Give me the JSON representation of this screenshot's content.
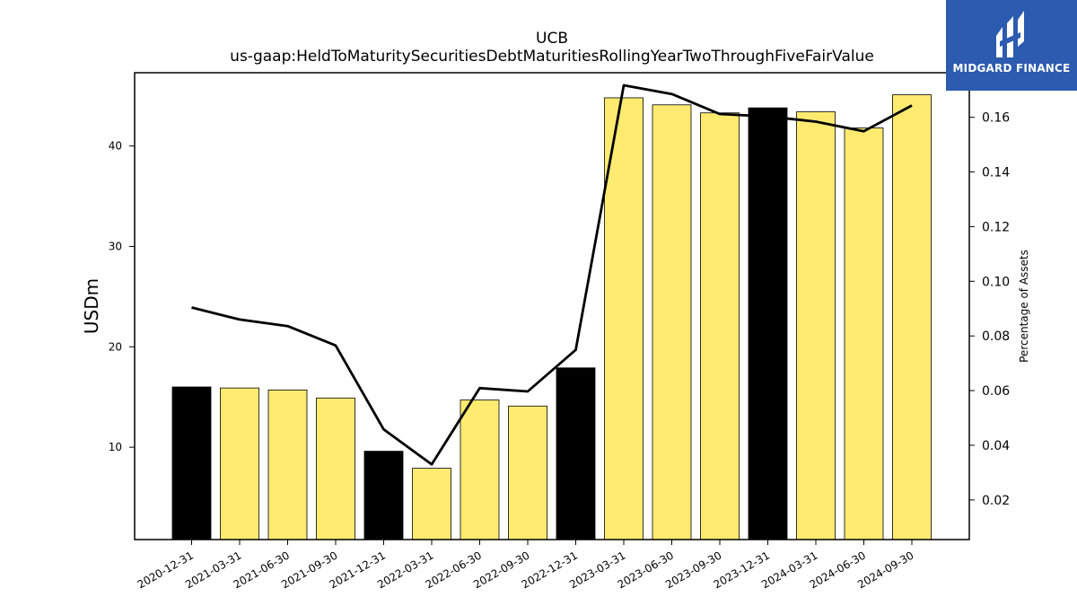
{
  "chart_data": {
    "type": "bar",
    "title": "UCB",
    "subtitle": "us-gaap:HeldToMaturitySecuritiesDebtMaturitiesRollingYearTwoThroughFiveFairValue",
    "ylabel": "USDm",
    "y2label": "Percentage of Assets",
    "categories": [
      "2020-12-31",
      "2021-03-31",
      "2021-06-30",
      "2021-09-30",
      "2021-12-31",
      "2022-03-31",
      "2022-06-30",
      "2022-09-30",
      "2022-12-31",
      "2023-03-31",
      "2023-06-30",
      "2023-09-30",
      "2023-12-31",
      "2024-03-31",
      "2024-06-30",
      "2024-09-30"
    ],
    "series": [
      {
        "axis": "left",
        "values": [
          16.0,
          15.9,
          15.7,
          14.9,
          9.6,
          7.9,
          14.7,
          14.1,
          17.9,
          44.8,
          44.1,
          43.3,
          43.8,
          43.4,
          41.8,
          45.1
        ],
        "colors": [
          "#000000",
          "#ffeb70",
          "#ffeb70",
          "#ffeb70",
          "#000000",
          "#ffeb70",
          "#ffeb70",
          "#ffeb70",
          "#000000",
          "#ffeb70",
          "#ffeb70",
          "#ffeb70",
          "#000000",
          "#ffeb70",
          "#ffeb70",
          "#ffeb70"
        ]
      },
      {
        "axis": "right",
        "type": "line",
        "color": "#000000",
        "values": [
          0.0904,
          0.086,
          0.0836,
          0.0765,
          0.0458,
          0.033,
          0.0609,
          0.0597,
          0.0749,
          0.1717,
          0.1685,
          0.1612,
          0.1603,
          0.1584,
          0.1549,
          0.1643
        ]
      }
    ],
    "ylim": [
      0.8,
      47.3
    ],
    "yticks": [
      10,
      20,
      30,
      40
    ],
    "y2lim": [
      0.0055,
      0.1763
    ],
    "y2ticks": [
      0.02,
      0.04,
      0.06,
      0.08,
      0.1,
      0.12,
      0.14,
      0.16
    ],
    "y2tick_labels": [
      "0.02",
      "0.04",
      "0.06",
      "0.08",
      "0.10",
      "0.12",
      "0.14",
      "0.16"
    ],
    "grid": false
  },
  "logo": {
    "text": "MIDGARD FINANCE",
    "color": "#2c5bb0"
  }
}
